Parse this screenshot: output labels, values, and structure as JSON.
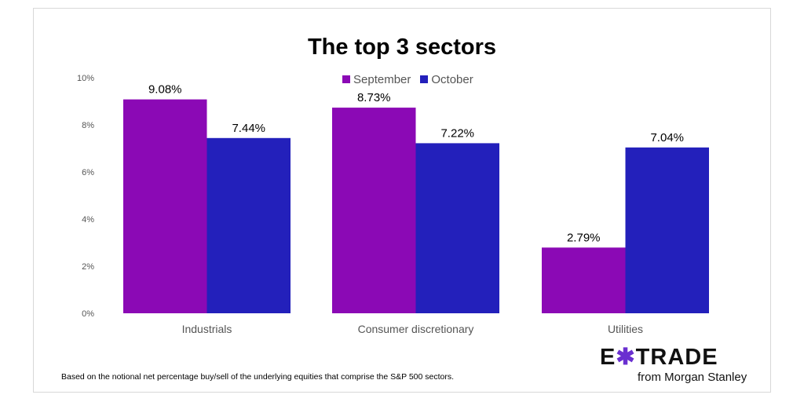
{
  "chart_data": {
    "type": "bar",
    "title": "The top 3 sectors",
    "categories": [
      "Industrials",
      "Consumer discretionary",
      "Utilities"
    ],
    "series": [
      {
        "name": "September",
        "color": "#8b09b5",
        "values": [
          9.08,
          8.73,
          2.79
        ],
        "labels": [
          "9.08%",
          "8.73%",
          "2.79%"
        ]
      },
      {
        "name": "October",
        "color": "#2320bb",
        "values": [
          7.44,
          7.22,
          7.04
        ],
        "labels": [
          "7.44%",
          "7.22%",
          "7.04%"
        ]
      }
    ],
    "ylim": [
      0,
      10
    ],
    "yticks": [
      0,
      2,
      4,
      6,
      8,
      10
    ],
    "ytick_labels": [
      "0%",
      "2%",
      "4%",
      "6%",
      "8%",
      "10%"
    ],
    "xlabel": "",
    "ylabel": "",
    "legend": "top-center",
    "grid": false
  },
  "footnote": "Based on the notional net percentage buy/sell of the underlying equities that comprise the S&P 500 sectors.",
  "logo": {
    "pre": "E",
    "x": "✱",
    "post": "TRADE",
    "sub": "from Morgan Stanley"
  }
}
